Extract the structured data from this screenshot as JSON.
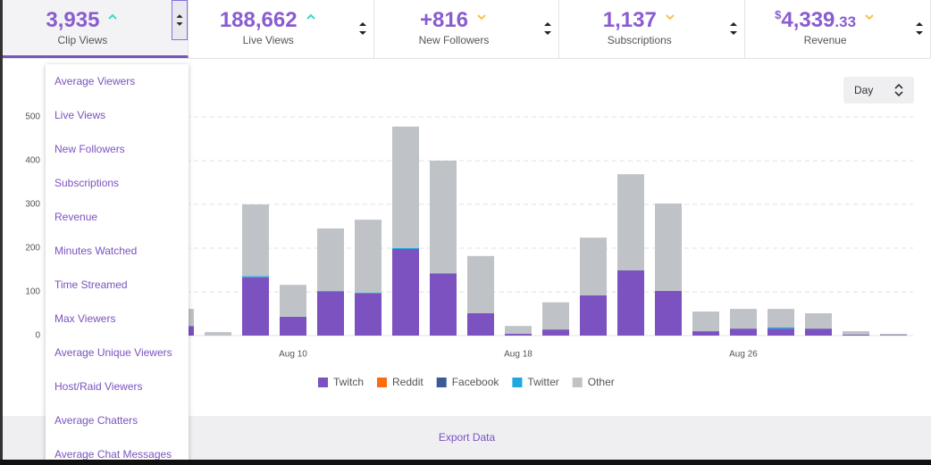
{
  "tabs": [
    {
      "value": "3,935",
      "label": "Clip Views",
      "trend": "up"
    },
    {
      "value": "188,662",
      "label": "Live Views",
      "trend": "up"
    },
    {
      "value": "+816",
      "label": "New Followers",
      "trend": "down"
    },
    {
      "value": "1,137",
      "label": "Subscriptions",
      "trend": "down"
    },
    {
      "currency": "$",
      "value": "4,339",
      "cents": ".33",
      "label": "Revenue",
      "trend": "down"
    }
  ],
  "dropdown": {
    "items": [
      "Average Viewers",
      "Live Views",
      "New Followers",
      "Subscriptions",
      "Revenue",
      "Minutes Watched",
      "Time Streamed",
      "Max Viewers",
      "Average Unique Viewers",
      "Host/Raid Viewers",
      "Average Chatters",
      "Average Chat Messages"
    ]
  },
  "range_select": "Day",
  "footer": {
    "action": "Export Data"
  },
  "chart_data": {
    "type": "stacked-bar",
    "categories": [
      null,
      null,
      null,
      "Aug 10",
      null,
      null,
      null,
      null,
      null,
      "Aug 18",
      null,
      null,
      null,
      null,
      null,
      "Aug 26",
      null,
      null,
      null,
      null
    ],
    "series": [
      {
        "name": "Twitch",
        "color": "#7b52bf",
        "values": [
          22,
          0,
          133,
          43,
          100,
          96,
          198,
          141,
          51,
          4,
          14,
          92,
          149,
          102,
          10,
          16,
          16,
          16,
          2,
          1
        ]
      },
      {
        "name": "Reddit",
        "color": "#ff6a13",
        "values": [
          0,
          0,
          0,
          0,
          0,
          0,
          0,
          0,
          0,
          0,
          0,
          0,
          0,
          0,
          0,
          0,
          0,
          0,
          0,
          0
        ]
      },
      {
        "name": "Facebook",
        "color": "#3d5a98",
        "values": [
          0,
          0,
          0,
          0,
          0,
          0,
          0,
          0,
          0,
          0,
          0,
          0,
          0,
          0,
          0,
          0,
          0,
          0,
          0,
          0
        ]
      },
      {
        "name": "Twitter",
        "color": "#1fa8e0",
        "values": [
          0,
          0,
          3,
          0,
          2,
          2,
          2,
          2,
          0,
          0,
          0,
          0,
          0,
          0,
          0,
          0,
          3,
          0,
          0,
          0
        ]
      },
      {
        "name": "Other",
        "color": "#bfc3c7",
        "values": [
          39,
          8,
          164,
          73,
          143,
          167,
          278,
          257,
          131,
          18,
          62,
          132,
          220,
          200,
          45,
          45,
          42,
          35,
          8,
          3
        ]
      }
    ],
    "ylim": [
      0,
      500
    ],
    "yticks": [
      0,
      100,
      200,
      300,
      400,
      500
    ],
    "grid": true
  }
}
